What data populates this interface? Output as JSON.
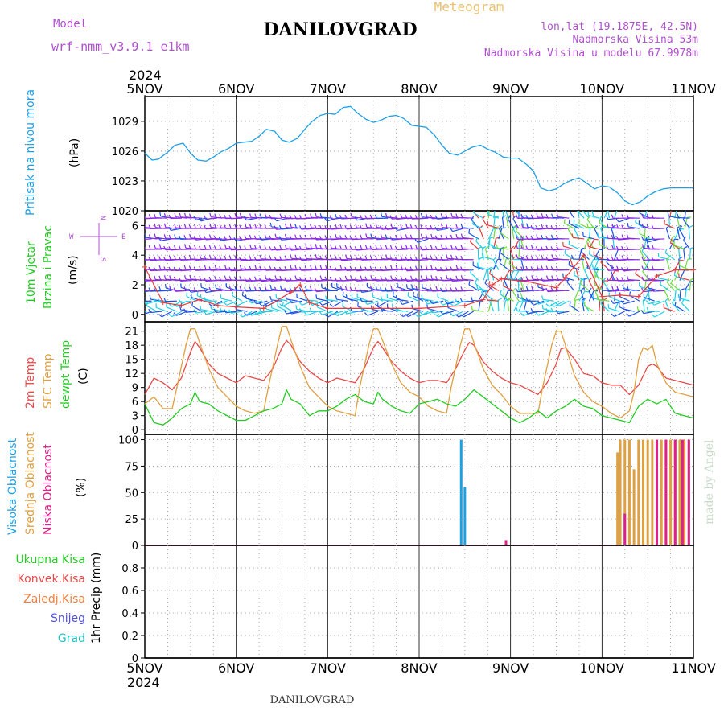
{
  "header": {
    "model_label": "Model",
    "model_name": "wrf-nmm_v3.9.1 e1km",
    "title": "DANILOVGRAD",
    "meteogram": "Meteogram",
    "coords": "lon,lat (19.1875E, 42.5N)",
    "elev": "Nadmorska Visina 53m",
    "elev_model": "Nadmorska Visina u modelu 67.9978m",
    "bottom_title": "DANILOVGRAD",
    "made_by": "made by Angel"
  },
  "colors": {
    "pressure": "#1ea0e6",
    "temp2m": "#e84a4a",
    "sfc_temp": "#e0a040",
    "dewpt": "#22cc22",
    "high_cloud": "#1ea0e6",
    "mid_cloud": "#e0a040",
    "low_cloud": "#e0208a",
    "wind_purple": "#8a2be2",
    "wind_blue": "#1e50e6",
    "wind_cyan": "#1ecfe6",
    "wind_green": "#6fdc3c",
    "gust_red": "#e83a3a",
    "snow": "#5050e6",
    "hail": "#22c0c0",
    "frz": "#f08040"
  },
  "chart_data": [
    {
      "type": "line",
      "panel": "pressure",
      "ylabel_rot": "Pritisak na nivou mora",
      "unit": "(hPa)",
      "xlabels": [
        "5NOV",
        "6NOV",
        "7NOV",
        "8NOV",
        "9NOV",
        "10NOV",
        "11NOV"
      ],
      "year": "2024",
      "ylim": [
        1020,
        1031.5
      ],
      "yticks": [
        "1020",
        "1023",
        "1026",
        "1029"
      ],
      "x": [
        0,
        0.08,
        0.15,
        0.25,
        0.33,
        0.42,
        0.5,
        0.58,
        0.67,
        0.75,
        0.83,
        0.92,
        1.0,
        1.08,
        1.17,
        1.25,
        1.33,
        1.42,
        1.5,
        1.58,
        1.67,
        1.75,
        1.83,
        1.92,
        2.0,
        2.08,
        2.17,
        2.25,
        2.33,
        2.42,
        2.5,
        2.58,
        2.67,
        2.75,
        2.83,
        2.92,
        3.0,
        3.08,
        3.17,
        3.25,
        3.33,
        3.42,
        3.5,
        3.58,
        3.67,
        3.75,
        3.83,
        3.92,
        4.0,
        4.08,
        4.17,
        4.25,
        4.33,
        4.42,
        4.5,
        4.58,
        4.67,
        4.75,
        4.83,
        4.92,
        5.0,
        5.08,
        5.17,
        5.25,
        5.33,
        5.42,
        5.5,
        5.58,
        5.67,
        5.75,
        5.83,
        5.92,
        6.0
      ],
      "values": [
        1025.8,
        1025.1,
        1025.2,
        1025.9,
        1026.6,
        1026.8,
        1025.8,
        1025.1,
        1025.0,
        1025.4,
        1025.9,
        1026.3,
        1026.8,
        1026.9,
        1027.0,
        1027.5,
        1028.2,
        1028.0,
        1027.1,
        1026.9,
        1027.3,
        1028.2,
        1029.0,
        1029.6,
        1029.8,
        1029.7,
        1030.4,
        1030.5,
        1029.8,
        1029.2,
        1028.9,
        1029.1,
        1029.5,
        1029.6,
        1029.3,
        1028.6,
        1028.5,
        1028.4,
        1027.6,
        1026.6,
        1025.8,
        1025.6,
        1026.0,
        1026.4,
        1026.6,
        1026.2,
        1025.9,
        1025.4,
        1025.3,
        1025.3,
        1024.7,
        1024.0,
        1022.3,
        1022.0,
        1022.2,
        1022.7,
        1023.1,
        1023.3,
        1022.8,
        1022.2,
        1022.5,
        1022.4,
        1021.8,
        1021.0,
        1020.6,
        1020.9,
        1021.5,
        1021.9,
        1022.2,
        1022.3,
        1022.3,
        1022.3,
        1022.3
      ]
    },
    {
      "type": "line",
      "panel": "wind",
      "ylabel_green": "10m Vjetar",
      "ylabel_green2": "Brzina i Pravac",
      "unit": "(m/s)",
      "compass_n": "N",
      "compass_s": "S",
      "compass_e": "E",
      "compass_w": "W",
      "ylim": [
        -0.5,
        7
      ],
      "yticks": [
        "0",
        "2",
        "4",
        "6"
      ],
      "gust_x": [
        0,
        0.2,
        0.4,
        0.6,
        0.8,
        1.0,
        1.3,
        1.6,
        1.7,
        1.8,
        2.0,
        2.5,
        3.0,
        3.5,
        3.7,
        3.8,
        3.9,
        4.2,
        4.5,
        4.6,
        4.8,
        5.0,
        5.2,
        5.4,
        5.6,
        5.8,
        6.0
      ],
      "gust_values": [
        3.2,
        0.8,
        0.6,
        1.0,
        0.6,
        0.5,
        0.4,
        1.5,
        2.0,
        0.8,
        0.4,
        0.4,
        0.4,
        0.6,
        1.0,
        2.0,
        2.4,
        2.2,
        1.8,
        2.5,
        4.0,
        1.2,
        1.3,
        1.2,
        2.6,
        3.0,
        3.0
      ]
    },
    {
      "type": "line",
      "panel": "temperature",
      "label_2m": "2m Temp",
      "label_sfc": "SFC Temp",
      "label_dew": "dewpt Temp",
      "unit": "(C)",
      "ylim": [
        -1,
        23
      ],
      "yticks": [
        "0",
        "3",
        "6",
        "9",
        "12",
        "15",
        "18",
        "21"
      ],
      "series": [
        {
          "name": "2m Temp",
          "x": [
            0,
            0.1,
            0.2,
            0.3,
            0.4,
            0.5,
            0.55,
            0.6,
            0.7,
            0.8,
            0.9,
            1.0,
            1.1,
            1.2,
            1.3,
            1.4,
            1.5,
            1.55,
            1.6,
            1.7,
            1.8,
            1.9,
            2.0,
            2.1,
            2.2,
            2.3,
            2.4,
            2.5,
            2.55,
            2.6,
            2.7,
            2.8,
            2.9,
            3.0,
            3.1,
            3.2,
            3.3,
            3.4,
            3.5,
            3.55,
            3.6,
            3.7,
            3.8,
            3.9,
            4.0,
            4.1,
            4.2,
            4.3,
            4.4,
            4.5,
            4.55,
            4.6,
            4.7,
            4.8,
            4.9,
            5.0,
            5.1,
            5.2,
            5.3,
            5.4,
            5.5,
            5.55,
            5.6,
            5.7,
            5.8,
            5.9,
            6.0
          ],
          "values": [
            7.5,
            11,
            10,
            8.5,
            11,
            16.5,
            18.8,
            17.5,
            14,
            12,
            11,
            10,
            11.5,
            11,
            10.5,
            13,
            17.5,
            19,
            18,
            14.5,
            12.5,
            11,
            10,
            11,
            10.5,
            10,
            13,
            17.5,
            18.8,
            17.5,
            14.5,
            12.5,
            11,
            10,
            10.5,
            10.5,
            10,
            13,
            17,
            18.6,
            18,
            14.5,
            12.5,
            11,
            10,
            9.5,
            8.5,
            7.5,
            10,
            14,
            17.2,
            17.5,
            15,
            12,
            11.5,
            10,
            9.5,
            9.5,
            7.5,
            9.5,
            13.5,
            14,
            13.5,
            11,
            10.5,
            10,
            9.5
          ]
        },
        {
          "name": "SFC Temp",
          "x": [
            0,
            0.1,
            0.2,
            0.3,
            0.35,
            0.45,
            0.5,
            0.55,
            0.6,
            0.7,
            0.8,
            0.9,
            1.0,
            1.1,
            1.2,
            1.3,
            1.35,
            1.45,
            1.5,
            1.55,
            1.6,
            1.7,
            1.8,
            1.9,
            2.0,
            2.1,
            2.2,
            2.3,
            2.35,
            2.45,
            2.5,
            2.55,
            2.6,
            2.7,
            2.8,
            2.9,
            3.0,
            3.1,
            3.2,
            3.3,
            3.35,
            3.45,
            3.5,
            3.55,
            3.6,
            3.7,
            3.8,
            3.9,
            4.0,
            4.1,
            4.2,
            4.3,
            4.35,
            4.45,
            4.5,
            4.55,
            4.6,
            4.7,
            4.8,
            4.9,
            5.0,
            5.1,
            5.2,
            5.3,
            5.35,
            5.4,
            5.45,
            5.5,
            5.55,
            5.6,
            5.7,
            5.8,
            5.9,
            6.0
          ],
          "values": [
            5.5,
            7,
            4.5,
            4.5,
            9,
            18,
            21.5,
            21.5,
            18.5,
            13,
            9,
            7,
            5,
            4,
            3.5,
            4,
            9,
            18,
            22,
            22,
            19,
            13.5,
            9,
            7,
            5,
            4,
            3.5,
            3,
            9,
            18,
            21.5,
            21.5,
            19,
            14,
            10,
            8,
            7,
            5,
            4,
            3.5,
            9,
            18,
            21.5,
            21.5,
            18.5,
            13,
            9.5,
            7.5,
            5,
            3.5,
            3.5,
            3.5,
            9,
            18,
            21,
            21,
            18,
            11.5,
            8,
            6,
            5,
            3.5,
            2.5,
            4,
            8,
            15,
            17.5,
            17,
            18,
            14,
            10,
            8,
            7.5,
            7
          ]
        },
        {
          "name": "dewpt Temp",
          "x": [
            0,
            0.1,
            0.2,
            0.3,
            0.4,
            0.5,
            0.55,
            0.6,
            0.7,
            0.8,
            0.9,
            1.0,
            1.1,
            1.2,
            1.3,
            1.4,
            1.5,
            1.55,
            1.6,
            1.7,
            1.8,
            1.9,
            2.0,
            2.1,
            2.2,
            2.3,
            2.4,
            2.5,
            2.55,
            2.6,
            2.7,
            2.8,
            2.9,
            3.0,
            3.1,
            3.2,
            3.3,
            3.4,
            3.5,
            3.6,
            3.7,
            3.8,
            3.9,
            4.0,
            4.1,
            4.2,
            4.3,
            4.4,
            4.5,
            4.6,
            4.7,
            4.8,
            4.9,
            5.0,
            5.1,
            5.2,
            5.3,
            5.4,
            5.5,
            5.6,
            5.7,
            5.8,
            5.9,
            6.0
          ],
          "values": [
            5.5,
            1.5,
            1.0,
            2.5,
            4.5,
            5.5,
            8.0,
            6.0,
            5.5,
            4.0,
            3.0,
            2.0,
            2.0,
            3.0,
            4.0,
            4.5,
            5.5,
            8.5,
            6.5,
            5.5,
            3.0,
            4.0,
            4.0,
            5.0,
            6.5,
            7.5,
            6.0,
            5.5,
            8.0,
            6.5,
            5.0,
            4.0,
            3.5,
            5.5,
            6.0,
            6.5,
            5.5,
            5.0,
            6.5,
            8.5,
            7.0,
            5.5,
            4.0,
            2.5,
            1.5,
            2.5,
            4.0,
            2.5,
            4.0,
            5.0,
            6.5,
            5.0,
            4.5,
            3.0,
            2.5,
            2.0,
            1.5,
            5.0,
            6.5,
            5.5,
            6.5,
            3.5,
            3.0,
            2.5
          ]
        }
      ]
    },
    {
      "type": "bar",
      "panel": "clouds",
      "label_high": "Visoka Oblacnost",
      "label_mid": "Srednja Oblacnost",
      "label_low": "Niska Oblacnost",
      "unit": "(%)",
      "ylim": [
        0,
        105
      ],
      "yticks": [
        "0",
        "25",
        "50",
        "75",
        "100"
      ],
      "series": [
        {
          "name": "Visoka Oblacnost",
          "x": [
            3.46,
            3.5
          ],
          "values": [
            100,
            55
          ]
        },
        {
          "name": "Srednja Oblacnost",
          "x": [
            5.17,
            5.2,
            5.25,
            5.3,
            5.35,
            5.4,
            5.45,
            5.5,
            5.55,
            5.6,
            5.65,
            5.7,
            5.75,
            5.8,
            5.85,
            5.9,
            5.95
          ],
          "values": [
            88,
            100,
            100,
            100,
            72,
            100,
            100,
            100,
            100,
            100,
            100,
            100,
            100,
            100,
            100,
            100,
            100
          ]
        },
        {
          "name": "Niska Oblacnost",
          "x": [
            3.95,
            5.25,
            5.6,
            5.7,
            5.8,
            5.88,
            5.95
          ],
          "values": [
            5,
            30,
            100,
            100,
            100,
            100,
            100
          ]
        }
      ]
    },
    {
      "type": "line",
      "panel": "precip",
      "label_total": "Ukupna Kisa",
      "label_conv": "Konvek.Kisa",
      "label_frz": "Zaledj.Kisa",
      "label_snow": "Snijeg",
      "label_hail": "Grad",
      "unit": "1hr Precip (mm)",
      "ylim": [
        0,
        1.0
      ],
      "yticks": [
        "0",
        "0.2",
        "0.4",
        "0.6",
        "0.8"
      ],
      "xlabels": [
        "5NOV",
        "6NOV",
        "7NOV",
        "8NOV",
        "9NOV",
        "10NOV",
        "11NOV"
      ],
      "year": "2024",
      "values": []
    }
  ]
}
